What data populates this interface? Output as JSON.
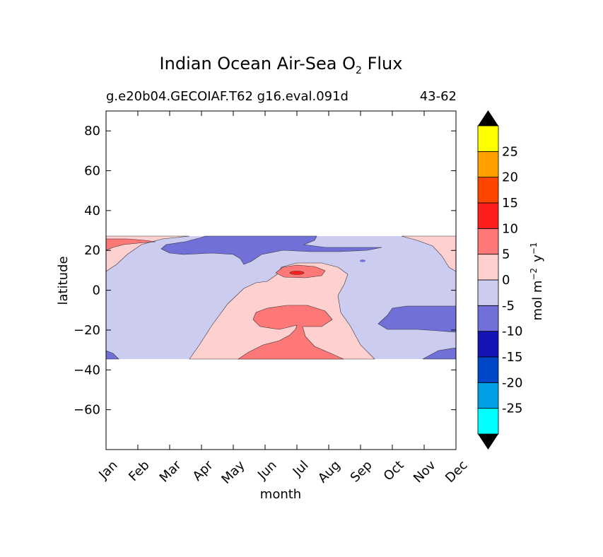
{
  "chart_data": {
    "type": "heatmap",
    "title": "Indian Ocean Air-Sea O",
    "title_subscript": "2",
    "title_suffix": "Flux",
    "subtitle_left": "g.e20b04.GECOIAF.T62 g16.eval.091d",
    "subtitle_right": "43-62",
    "xlabel": "month",
    "ylabel": "latitude",
    "x_categories": [
      "Jan",
      "Feb",
      "Mar",
      "Apr",
      "May",
      "Jun",
      "Jul",
      "Aug",
      "Sep",
      "Oct",
      "Nov",
      "Dec"
    ],
    "ylim": [
      -80,
      90
    ],
    "y_ticks": [
      80,
      60,
      40,
      20,
      0,
      -20,
      -40,
      -60
    ],
    "y_tick_labels": [
      "80",
      "60",
      "40",
      "20",
      "0",
      "−20",
      "−40",
      "−60"
    ],
    "data_lat_range": [
      -34,
      27
    ],
    "colorbar": {
      "label_main": "mol m",
      "label_exp1": "−2",
      "label_mid": "y",
      "label_exp2": "−1",
      "levels": [
        -30,
        -25,
        -20,
        -15,
        -10,
        -5,
        0,
        5,
        10,
        15,
        20,
        25,
        30
      ],
      "tick_labels": [
        "25",
        "20",
        "15",
        "10",
        "5",
        "0",
        "-5",
        "-10",
        "-15",
        "-20",
        "-25"
      ],
      "colors": [
        "#00ffff",
        "#00a0e6",
        "#0046c8",
        "#1414b4",
        "#7070d8",
        "#ccccf0",
        "#ffd0d0",
        "#ff7878",
        "#ff1e1e",
        "#ff4600",
        "#ffa000",
        "#ffff00"
      ],
      "extend": "both"
    },
    "regions": [
      {
        "level": "-5 to 0",
        "description": "background weak uptake band"
      },
      {
        "level": "0 to 5",
        "description": "central mid-year outgassing tongue"
      },
      {
        "level": "5 to 10",
        "description": "southern subtropics outgassing May-Aug"
      },
      {
        "level": "-10 to -5",
        "description": "northern 20N uptake Apr-Aug, southern Oct-Dec"
      }
    ]
  }
}
